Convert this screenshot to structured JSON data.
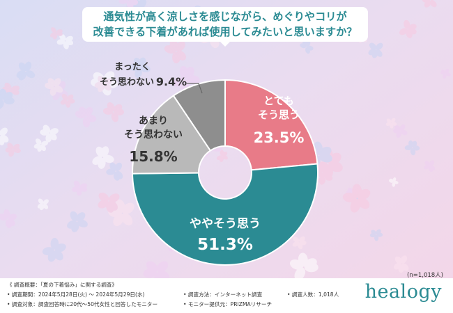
{
  "question": {
    "line1": "通気性が高く涼しさを感じながら、めぐりやコリが",
    "line2": "改善できる下着があれば使用してみたいと思いますか？"
  },
  "chart_data": {
    "type": "pie",
    "title": "通気性が高く涼しさを感じながら、めぐりやコリが改善できる下着があれば使用してみたいと思いますか？",
    "donut": true,
    "slices": [
      {
        "label": [
          "とても",
          "そう思う"
        ],
        "value": 23.5,
        "display": "23.5%",
        "color": "#e87b88"
      },
      {
        "label": [
          "ややそう思う"
        ],
        "value": 51.3,
        "display": "51.3%",
        "color": "#2b8b93"
      },
      {
        "label": [
          "あまり",
          "そう思わない"
        ],
        "value": 15.8,
        "display": "15.8%",
        "color": "#b9b9b9"
      },
      {
        "label": [
          "まったく",
          "そう思わない"
        ],
        "value": 9.4,
        "display": "9.4%",
        "color": "#8e8e8e"
      }
    ]
  },
  "sample_size": "(n=1,018人)",
  "footer": {
    "overview": "《 調査概要：「夏の下着悩み」に関する調査》",
    "period": "• 調査期間：2024年5月28日(火) ～ 2024年5月29日(水)",
    "target": "• 調査対象：調査回答時に20代～50代女性と回答したモニター",
    "method": "• 調査方法：インターネット調査",
    "provider": "• モニター提供元：PRIZMAリサーチ",
    "count": "• 調査人数：1,018人"
  },
  "brand": "healogy"
}
